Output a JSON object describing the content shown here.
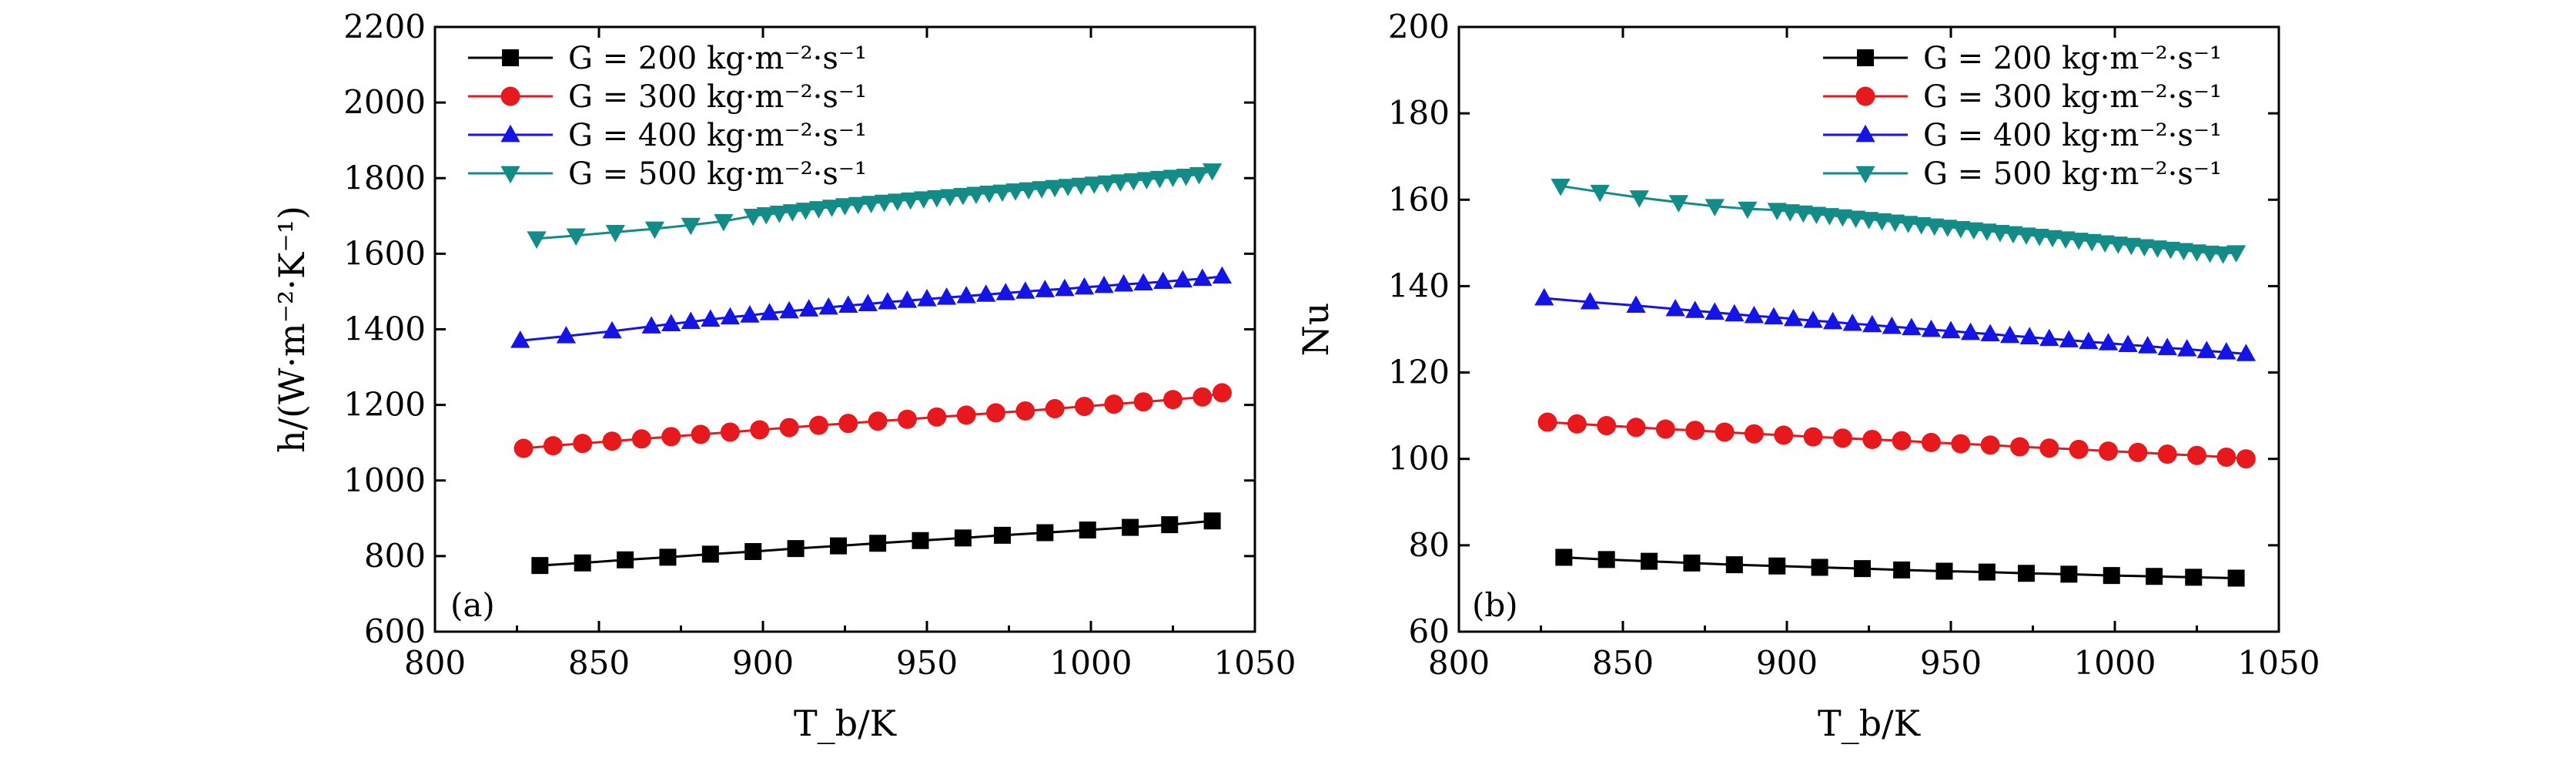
{
  "chart_data": [
    {
      "type": "line",
      "panel_label": "(a)",
      "xlabel": "T_b/K",
      "ylabel": "h/(W·m⁻²·K⁻¹)",
      "xlim": [
        800,
        1050
      ],
      "ylim": [
        600,
        2200
      ],
      "xticks": [
        800,
        850,
        900,
        950,
        1000,
        1050
      ],
      "yticks": [
        600,
        800,
        1000,
        1200,
        1400,
        1600,
        1800,
        2000,
        2200
      ],
      "legend_position": "top-left",
      "series": [
        {
          "name": "G = 200 kg·m⁻²·s⁻¹",
          "color": "#000000",
          "marker": "square",
          "x": [
            832,
            845,
            858,
            871,
            884,
            897,
            910,
            923,
            935,
            948,
            961,
            973,
            986,
            999,
            1012,
            1024,
            1037
          ],
          "y": [
            775,
            782,
            790,
            797,
            805,
            812,
            820,
            827,
            834,
            841,
            848,
            855,
            862,
            869,
            876,
            883,
            893
          ]
        },
        {
          "name": "G = 300 kg·m⁻²·s⁻¹",
          "color": "#e8191c",
          "marker": "circle",
          "x": [
            827,
            836,
            845,
            854,
            863,
            872,
            881,
            890,
            899,
            908,
            917,
            926,
            935,
            944,
            953,
            962,
            971,
            980,
            989,
            998,
            1007,
            1016,
            1025,
            1034,
            1040
          ],
          "y": [
            1085,
            1092,
            1098,
            1104,
            1110,
            1116,
            1122,
            1128,
            1134,
            1140,
            1146,
            1151,
            1157,
            1162,
            1168,
            1173,
            1179,
            1184,
            1190,
            1196,
            1202,
            1208,
            1214,
            1221,
            1232
          ]
        },
        {
          "name": "G = 400 kg·m⁻²·s⁻¹",
          "color": "#1414e6",
          "marker": "triangle-up",
          "x": [
            826,
            840,
            854,
            866,
            872,
            878,
            884,
            890,
            896,
            902,
            908,
            914,
            920,
            926,
            932,
            938,
            944,
            950,
            956,
            962,
            968,
            974,
            980,
            986,
            992,
            998,
            1004,
            1010,
            1016,
            1022,
            1028,
            1034,
            1040
          ],
          "y": [
            1370,
            1382,
            1395,
            1408,
            1414,
            1420,
            1426,
            1432,
            1437,
            1443,
            1448,
            1453,
            1458,
            1463,
            1467,
            1472,
            1476,
            1480,
            1484,
            1488,
            1492,
            1496,
            1500,
            1504,
            1507,
            1511,
            1515,
            1519,
            1522,
            1526,
            1530,
            1534,
            1540
          ]
        },
        {
          "name": "G = 500 kg·m⁻²·s⁻¹",
          "color": "#138b87",
          "marker": "triangle-down",
          "x": [
            831,
            843,
            855,
            867,
            878,
            888,
            897,
            901,
            905,
            909,
            913,
            917,
            921,
            925,
            929,
            933,
            937,
            941,
            945,
            949,
            953,
            957,
            961,
            965,
            969,
            973,
            977,
            981,
            985,
            989,
            993,
            997,
            1001,
            1005,
            1009,
            1013,
            1017,
            1021,
            1025,
            1029,
            1033,
            1037
          ],
          "y": [
            1640,
            1648,
            1657,
            1666,
            1676,
            1686,
            1700,
            1704,
            1708,
            1712,
            1716,
            1720,
            1724,
            1728,
            1731,
            1734,
            1737,
            1740,
            1743,
            1746,
            1749,
            1752,
            1755,
            1758,
            1761,
            1764,
            1767,
            1770,
            1773,
            1776,
            1779,
            1782,
            1785,
            1788,
            1791,
            1794,
            1797,
            1800,
            1803,
            1806,
            1810,
            1820
          ]
        }
      ]
    },
    {
      "type": "line",
      "panel_label": "(b)",
      "xlabel": "T_b/K",
      "ylabel": "Nu",
      "xlim": [
        800,
        1050
      ],
      "ylim": [
        60,
        200
      ],
      "xticks": [
        800,
        850,
        900,
        950,
        1000,
        1050
      ],
      "yticks": [
        60,
        80,
        100,
        120,
        140,
        160,
        180,
        200
      ],
      "legend_position": "top-right",
      "series": [
        {
          "name": "G = 200 kg·m⁻²·s⁻¹",
          "color": "#000000",
          "marker": "square",
          "x": [
            832,
            845,
            858,
            871,
            884,
            897,
            910,
            923,
            935,
            948,
            961,
            973,
            986,
            999,
            1012,
            1024,
            1037
          ],
          "y": [
            77.2,
            76.7,
            76.3,
            75.9,
            75.5,
            75.2,
            74.9,
            74.6,
            74.3,
            74.0,
            73.8,
            73.5,
            73.3,
            73.0,
            72.8,
            72.6,
            72.4
          ]
        },
        {
          "name": "G = 300 kg·m⁻²·s⁻¹",
          "color": "#e8191c",
          "marker": "circle",
          "x": [
            827,
            836,
            845,
            854,
            863,
            872,
            881,
            890,
            899,
            908,
            917,
            926,
            935,
            944,
            953,
            962,
            971,
            980,
            989,
            998,
            1007,
            1016,
            1025,
            1034,
            1040
          ],
          "y": [
            108.5,
            108.1,
            107.7,
            107.3,
            106.9,
            106.6,
            106.2,
            105.8,
            105.5,
            105.1,
            104.8,
            104.5,
            104.2,
            103.8,
            103.5,
            103.2,
            102.8,
            102.5,
            102.2,
            101.8,
            101.5,
            101.1,
            100.8,
            100.4,
            100.0
          ]
        },
        {
          "name": "G = 400 kg·m⁻²·s⁻¹",
          "color": "#1414e6",
          "marker": "triangle-up",
          "x": [
            826,
            840,
            854,
            866,
            872,
            878,
            884,
            890,
            896,
            902,
            908,
            914,
            920,
            926,
            932,
            938,
            944,
            950,
            956,
            962,
            968,
            974,
            980,
            986,
            992,
            998,
            1004,
            1010,
            1016,
            1022,
            1028,
            1034,
            1040
          ],
          "y": [
            137.2,
            136.3,
            135.5,
            134.7,
            134.3,
            133.9,
            133.5,
            133.1,
            132.8,
            132.4,
            132.0,
            131.7,
            131.3,
            131.0,
            130.6,
            130.3,
            129.9,
            129.6,
            129.2,
            128.9,
            128.5,
            128.2,
            127.8,
            127.5,
            127.1,
            126.8,
            126.4,
            126.1,
            125.7,
            125.4,
            125.0,
            124.7,
            124.3
          ]
        },
        {
          "name": "G = 500 kg·m⁻²·s⁻¹",
          "color": "#138b87",
          "marker": "triangle-down",
          "x": [
            831,
            843,
            855,
            867,
            878,
            888,
            897,
            901,
            905,
            909,
            913,
            917,
            921,
            925,
            929,
            933,
            937,
            941,
            945,
            949,
            953,
            957,
            961,
            965,
            969,
            973,
            977,
            981,
            985,
            989,
            993,
            997,
            1001,
            1005,
            1009,
            1013,
            1017,
            1021,
            1025,
            1029,
            1033,
            1037
          ],
          "y": [
            163.2,
            161.8,
            160.5,
            159.4,
            158.5,
            157.9,
            157.6,
            157.3,
            157.0,
            156.7,
            156.4,
            156.1,
            155.8,
            155.5,
            155.2,
            154.9,
            154.6,
            154.3,
            154.0,
            153.7,
            153.4,
            153.1,
            152.8,
            152.5,
            152.2,
            151.9,
            151.6,
            151.3,
            151.0,
            150.7,
            150.4,
            150.1,
            149.8,
            149.5,
            149.2,
            148.9,
            148.6,
            148.3,
            148.0,
            147.7,
            147.5,
            147.8
          ]
        }
      ]
    }
  ]
}
